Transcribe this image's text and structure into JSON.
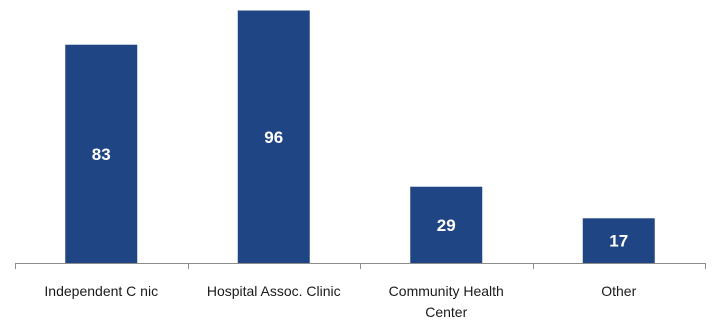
{
  "chart_data": {
    "type": "bar",
    "categories": [
      [
        "Independent C  nic"
      ],
      [
        "Hospital Assoc. Clinic"
      ],
      [
        "Community Health",
        "Center"
      ],
      [
        "Other"
      ]
    ],
    "values": [
      83,
      96,
      29,
      17
    ],
    "data_labels": [
      "83",
      "96",
      "29",
      "17"
    ],
    "title": "",
    "xlabel": "",
    "ylabel": "",
    "ylim": [
      0,
      100
    ],
    "grid": false,
    "legend": "none",
    "colors": {
      "bar": "#1f4584",
      "axis": "#8c8c8c",
      "data_label": "#ffffff"
    }
  }
}
